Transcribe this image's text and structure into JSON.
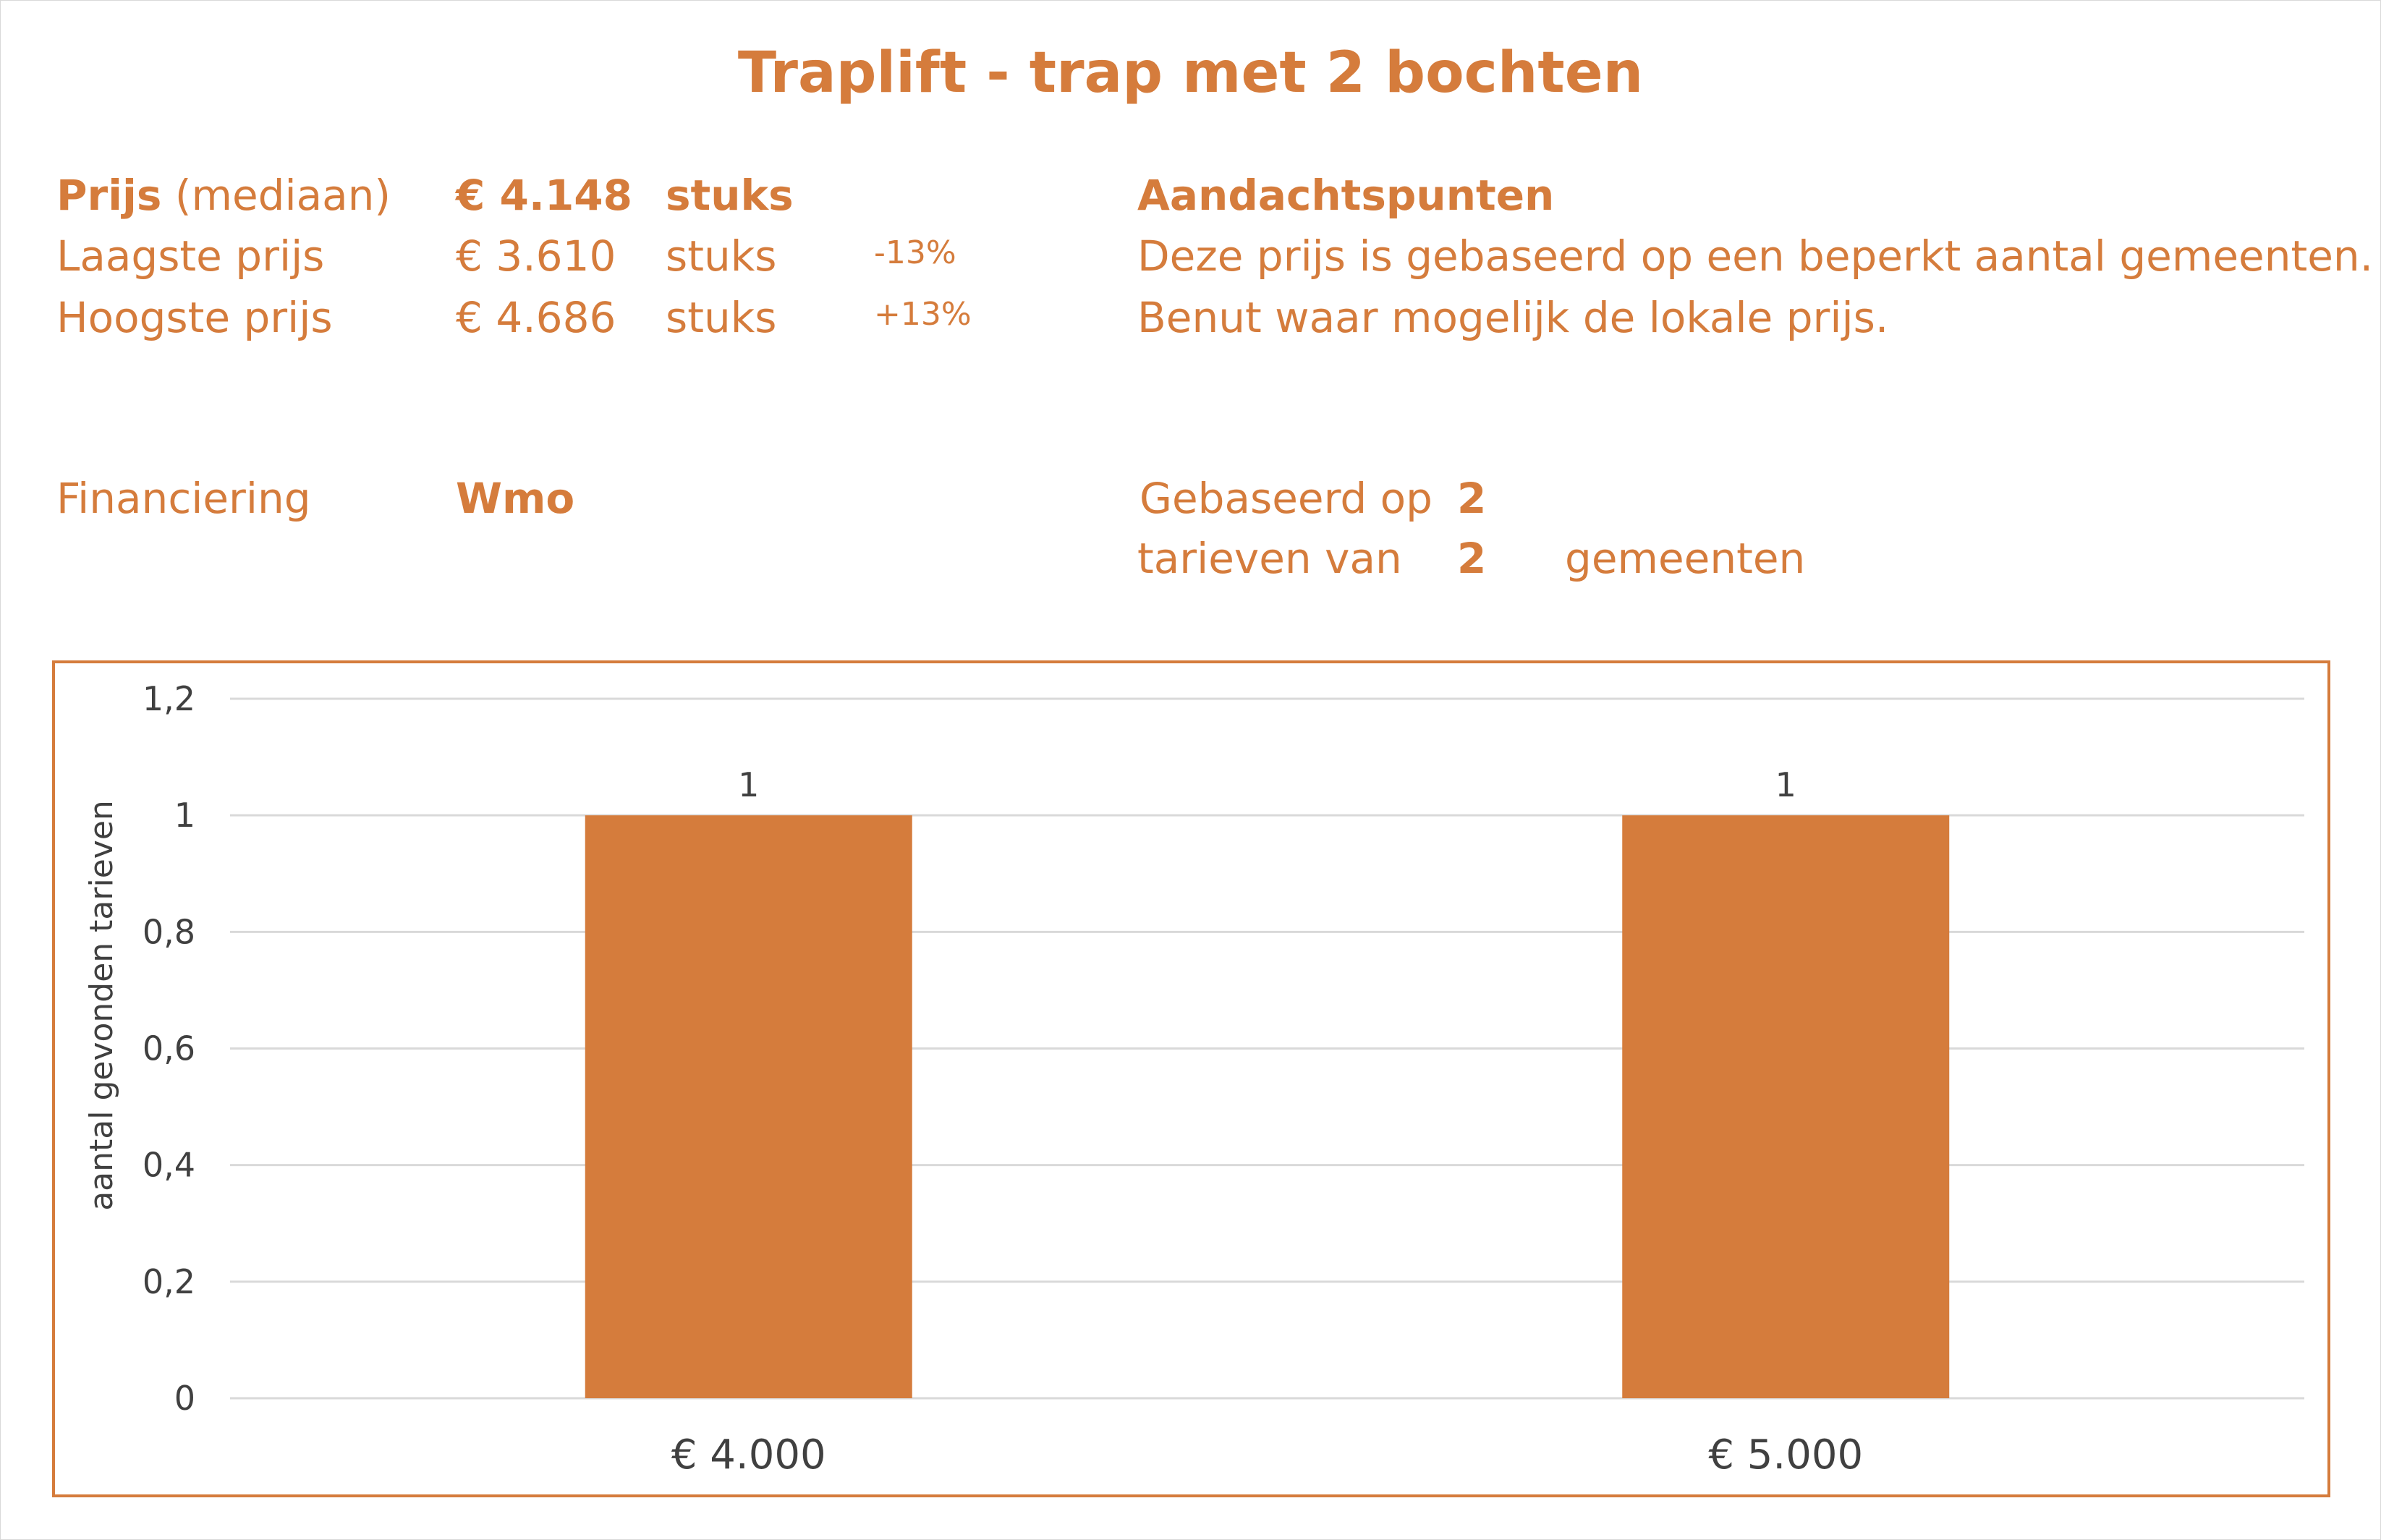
{
  "title": "Traplift - trap met 2 bochten",
  "prices": {
    "median": {
      "label_bold": "Prijs",
      "label_rest": " (mediaan)",
      "value": "€ 4.148",
      "unit": "stuks"
    },
    "lowest": {
      "label": "Laagste prijs",
      "value": "€ 3.610",
      "unit": "stuks",
      "pct": "-13%"
    },
    "highest": {
      "label": "Hoogste prijs",
      "value": "€ 4.686",
      "unit": "stuks",
      "pct": "+13%"
    }
  },
  "attention": {
    "heading": "Aandachtspunten",
    "line1": "Deze prijs is gebaseerd op een beperkt aantal gemeenten.",
    "line2": "Benut waar mogelijk de lokale prijs."
  },
  "financing": {
    "label": "Financiering",
    "value": "Wmo"
  },
  "based_on": {
    "line1_label": "Gebaseerd op",
    "line1_value": "2",
    "line2_label": "tarieven van",
    "line2_value": "2",
    "line2_suffix": "gemeenten"
  },
  "colors": {
    "accent": "#d57c3c",
    "bar": "#d57c3c",
    "grid": "#d9d9d9",
    "text": "#404040"
  },
  "chart_data": {
    "type": "bar",
    "categories": [
      "€ 4.000",
      "€ 5.000"
    ],
    "values": [
      1,
      1
    ],
    "data_labels": [
      "1",
      "1"
    ],
    "ylabel": "aantal gevonden tarieven",
    "ylim": [
      0,
      1.2
    ],
    "yticks": [
      0,
      0.2,
      0.4,
      0.6,
      0.8,
      1,
      1.2
    ],
    "ytick_labels": [
      "0",
      "0,2",
      "0,4",
      "0,6",
      "0,8",
      "1",
      "1,2"
    ],
    "grid": true
  }
}
